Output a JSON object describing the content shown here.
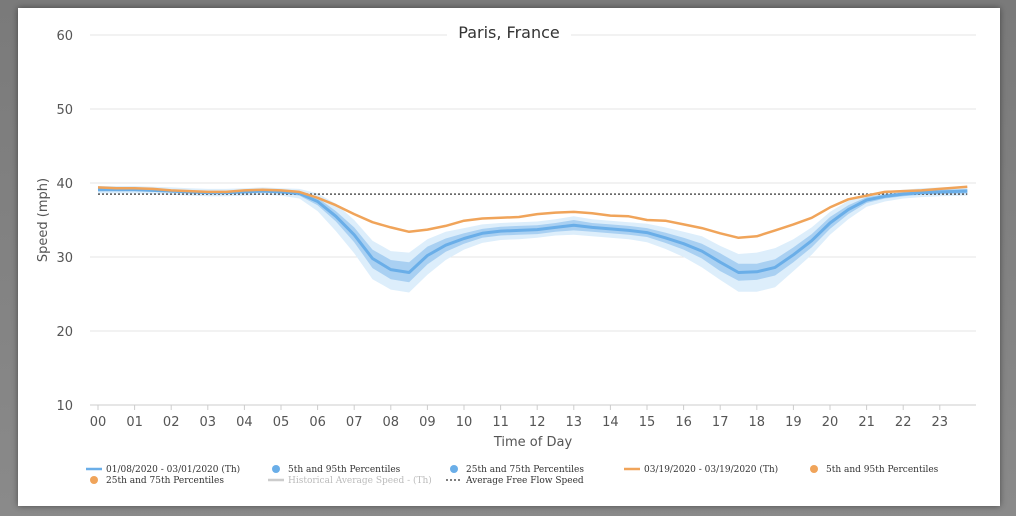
{
  "chart_data": {
    "type": "line",
    "title": "Paris, France",
    "xlabel": "Time of Day",
    "ylabel": "Speed (mph)",
    "xlim": [
      0,
      24
    ],
    "ylim": [
      10,
      60
    ],
    "y_ticks": [
      "10",
      "20",
      "30",
      "40",
      "50",
      "60"
    ],
    "x_ticks": [
      "00",
      "01",
      "02",
      "03",
      "04",
      "05",
      "06",
      "07",
      "08",
      "09",
      "10",
      "11",
      "12",
      "13",
      "14",
      "15",
      "16",
      "17",
      "18",
      "19",
      "20",
      "21",
      "22",
      "23"
    ],
    "grid": "horizontal",
    "legend_position": "bottom",
    "x": [
      0,
      0.5,
      1,
      1.5,
      2,
      2.5,
      3,
      3.5,
      4,
      4.5,
      5,
      5.5,
      6,
      6.5,
      7,
      7.5,
      8,
      8.5,
      9,
      9.5,
      10,
      10.5,
      11,
      11.5,
      12,
      12.5,
      13,
      13.5,
      14,
      14.5,
      15,
      15.5,
      16,
      16.5,
      17,
      17.5,
      18,
      18.5,
      19,
      19.5,
      20,
      20.5,
      21,
      21.5,
      22,
      22.5,
      23,
      23.75
    ],
    "series": [
      {
        "name": "01/08/2020 - 03/01/2020 (Th)",
        "color": "#6aaee8",
        "values": [
          39.1,
          39.1,
          39.1,
          39.0,
          38.9,
          38.8,
          38.7,
          38.7,
          38.8,
          38.9,
          38.8,
          38.6,
          37.5,
          35.5,
          33.0,
          29.8,
          28.3,
          27.9,
          30.2,
          31.6,
          32.5,
          33.2,
          33.5,
          33.6,
          33.7,
          34.0,
          34.3,
          34.0,
          33.8,
          33.6,
          33.3,
          32.6,
          31.8,
          30.8,
          29.3,
          27.9,
          28.0,
          28.6,
          30.3,
          32.2,
          34.6,
          36.4,
          37.7,
          38.2,
          38.5,
          38.7,
          38.8,
          38.9
        ],
        "p25_75": [
          [
            38.9,
            39.3
          ],
          [
            38.9,
            39.3
          ],
          [
            38.9,
            39.3
          ],
          [
            38.8,
            39.2
          ],
          [
            38.7,
            39.1
          ],
          [
            38.6,
            39.0
          ],
          [
            38.5,
            38.9
          ],
          [
            38.5,
            38.9
          ],
          [
            38.6,
            39.0
          ],
          [
            38.7,
            39.1
          ],
          [
            38.6,
            39.0
          ],
          [
            38.3,
            38.9
          ],
          [
            37.0,
            38.0
          ],
          [
            34.8,
            36.2
          ],
          [
            32.0,
            34.0
          ],
          [
            28.5,
            31.0
          ],
          [
            27.0,
            29.6
          ],
          [
            26.6,
            29.3
          ],
          [
            29.0,
            31.4
          ],
          [
            30.7,
            32.5
          ],
          [
            31.8,
            33.2
          ],
          [
            32.6,
            33.8
          ],
          [
            32.9,
            34.1
          ],
          [
            33.0,
            34.2
          ],
          [
            33.1,
            34.3
          ],
          [
            33.4,
            34.6
          ],
          [
            33.6,
            35.0
          ],
          [
            33.4,
            34.6
          ],
          [
            33.2,
            34.4
          ],
          [
            33.0,
            34.2
          ],
          [
            32.7,
            33.9
          ],
          [
            31.9,
            33.3
          ],
          [
            31.0,
            32.6
          ],
          [
            29.8,
            31.8
          ],
          [
            28.1,
            30.5
          ],
          [
            26.8,
            29.1
          ],
          [
            26.9,
            29.1
          ],
          [
            27.5,
            29.7
          ],
          [
            29.3,
            31.3
          ],
          [
            31.3,
            33.1
          ],
          [
            33.8,
            35.4
          ],
          [
            35.8,
            37.0
          ],
          [
            37.3,
            38.1
          ],
          [
            37.9,
            38.5
          ],
          [
            38.2,
            38.8
          ],
          [
            38.4,
            39.0
          ],
          [
            38.5,
            39.1
          ],
          [
            38.6,
            39.2
          ]
        ],
        "p5_95": [
          [
            38.6,
            39.6
          ],
          [
            38.6,
            39.6
          ],
          [
            38.6,
            39.6
          ],
          [
            38.5,
            39.5
          ],
          [
            38.4,
            39.4
          ],
          [
            38.3,
            39.3
          ],
          [
            38.2,
            39.2
          ],
          [
            38.2,
            39.2
          ],
          [
            38.3,
            39.3
          ],
          [
            38.4,
            39.4
          ],
          [
            38.3,
            39.3
          ],
          [
            37.9,
            39.2
          ],
          [
            36.2,
            38.6
          ],
          [
            33.5,
            37.2
          ],
          [
            30.5,
            35.0
          ],
          [
            27.0,
            32.2
          ],
          [
            25.6,
            30.8
          ],
          [
            25.2,
            30.6
          ],
          [
            27.6,
            32.4
          ],
          [
            29.6,
            33.4
          ],
          [
            31.0,
            33.9
          ],
          [
            31.9,
            34.4
          ],
          [
            32.3,
            34.6
          ],
          [
            32.4,
            34.7
          ],
          [
            32.6,
            34.8
          ],
          [
            32.9,
            35.1
          ],
          [
            33.0,
            35.5
          ],
          [
            32.8,
            35.1
          ],
          [
            32.6,
            34.9
          ],
          [
            32.4,
            34.7
          ],
          [
            32.0,
            34.5
          ],
          [
            31.1,
            34.0
          ],
          [
            30.0,
            33.4
          ],
          [
            28.6,
            32.8
          ],
          [
            26.9,
            31.5
          ],
          [
            25.3,
            30.4
          ],
          [
            25.3,
            30.6
          ],
          [
            25.9,
            31.2
          ],
          [
            28.1,
            32.4
          ],
          [
            30.3,
            34.0
          ],
          [
            33.0,
            36.1
          ],
          [
            35.1,
            37.6
          ],
          [
            36.8,
            38.5
          ],
          [
            37.5,
            38.9
          ],
          [
            37.9,
            39.1
          ],
          [
            38.1,
            39.3
          ],
          [
            38.2,
            39.4
          ],
          [
            38.3,
            39.5
          ]
        ]
      },
      {
        "name": "03/19/2020 - 03/19/2020 (Th)",
        "color": "#f0a45a",
        "values": [
          39.4,
          39.3,
          39.3,
          39.2,
          39.0,
          38.9,
          38.8,
          38.8,
          39.0,
          39.1,
          39.0,
          38.8,
          38.0,
          37.0,
          35.8,
          34.7,
          34.0,
          33.4,
          33.7,
          34.2,
          34.9,
          35.2,
          35.3,
          35.4,
          35.8,
          36.0,
          36.1,
          35.9,
          35.6,
          35.5,
          35.0,
          34.9,
          34.4,
          33.9,
          33.2,
          32.6,
          32.8,
          33.6,
          34.4,
          35.3,
          36.7,
          37.8,
          38.3,
          38.8,
          38.9,
          39.0,
          39.2,
          39.5
        ]
      }
    ],
    "free_flow_speed": 38.5,
    "legend": [
      {
        "label": "01/08/2020 - 03/01/2020 (Th)",
        "symbol": "line",
        "color": "#6aaee8"
      },
      {
        "label": "5th and 95th Percentiles",
        "symbol": "dot",
        "color": "#6aaee8"
      },
      {
        "label": "25th and 75th Percentiles",
        "symbol": "dot",
        "color": "#6aaee8"
      },
      {
        "label": "03/19/2020 - 03/19/2020 (Th)",
        "symbol": "line",
        "color": "#f0a45a"
      },
      {
        "label": "5th and 95th Percentiles",
        "symbol": "dot",
        "color": "#f0a45a"
      },
      {
        "label": "25th and 75th Percentiles",
        "symbol": "dot",
        "color": "#f0a45a"
      },
      {
        "label": "Historical Average Speed - (Th)",
        "symbol": "line",
        "color": "#cccccc",
        "disabled": true
      },
      {
        "label": "Average Free Flow Speed",
        "symbol": "dotted",
        "color": "#555555"
      }
    ]
  }
}
